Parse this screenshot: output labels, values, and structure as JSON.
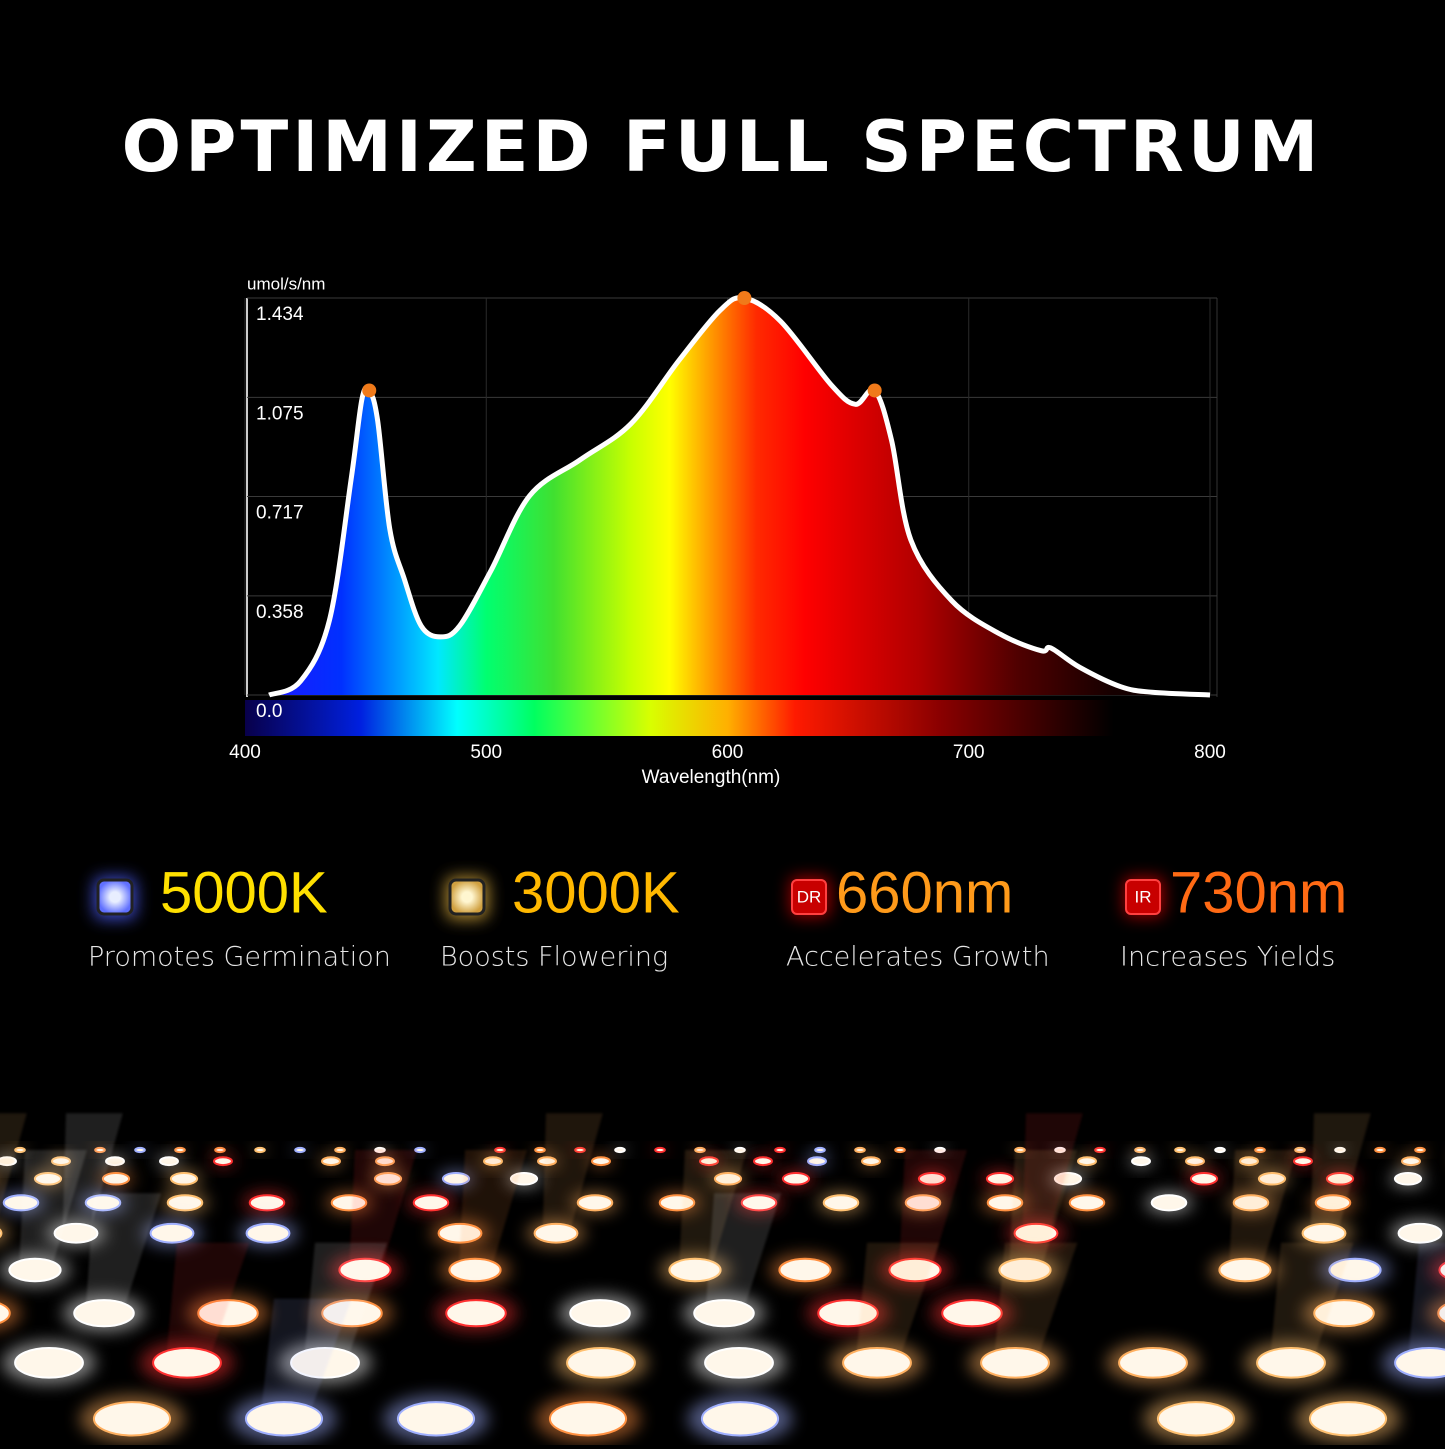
{
  "chart_data": {
    "type": "line",
    "title": "OPTIMIZED FULL SPECTRUM",
    "y_label": "umol/s/nm",
    "x_label": "Wavelength(nm)",
    "x": [
      410,
      423,
      435,
      444,
      448.5,
      451.5,
      455,
      460,
      466,
      473,
      481,
      489,
      502,
      518,
      539,
      560,
      580,
      597,
      607,
      622,
      643,
      653,
      661,
      668,
      676,
      693,
      713,
      730,
      734,
      746,
      763,
      776,
      800
    ],
    "series": [
      {
        "name": "spectrum",
        "color": "#ffffff",
        "values": [
          0,
          0.05,
          0.27,
          0.78,
          1.07,
          1.1,
          0.99,
          0.6,
          0.42,
          0.25,
          0.21,
          0.25,
          0.45,
          0.72,
          0.85,
          0.98,
          1.21,
          1.39,
          1.434,
          1.35,
          1.12,
          1.05,
          1.1,
          0.92,
          0.56,
          0.34,
          0.22,
          0.16,
          0.17,
          0.1,
          0.03,
          0.01,
          0
        ]
      }
    ],
    "marker_color": "#f07a1a",
    "xlim": [
      400,
      800
    ],
    "xticks": [
      400,
      500,
      600,
      700,
      800
    ],
    "ylim": [
      0,
      1.434
    ],
    "yticks": [
      {
        "value": 0,
        "label": "0.0"
      },
      0.358,
      0.717,
      1.075,
      1.434
    ],
    "grid": true
  },
  "features": [
    {
      "badge": null,
      "title": "5000K",
      "desc": "Promotes Germination",
      "color": "#ffe000"
    },
    {
      "badge": null,
      "title": "3000K",
      "desc": "Boosts Flowering",
      "color": "#ffb800"
    },
    {
      "badge": "DR",
      "title": "660nm",
      "desc": "Accelerates Growth",
      "color": "#ff9a1a"
    },
    {
      "badge": "IR",
      "title": "730nm",
      "desc": "Increases Yields",
      "color": "#ff6a14"
    }
  ]
}
